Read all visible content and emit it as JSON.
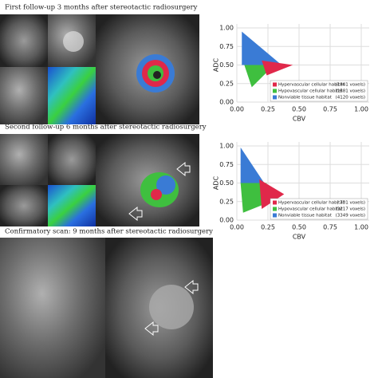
{
  "panels": [
    {
      "title": "First follow-up 3 months after stereotactic radiosurgery"
    },
    {
      "title": "Second follow-up 6 months after stereotactic radiosurgery"
    },
    {
      "title": "Confirmatory scan: 9 months after stereotactic radiosurgery"
    }
  ],
  "plots": [
    {
      "xlabel": "CBV",
      "ylabel": "ADC",
      "xlim": [
        0,
        1
      ],
      "ylim": [
        0,
        1
      ],
      "xticks": [
        {
          "value": 0,
          "label": "0.00"
        },
        {
          "value": 0.25,
          "label": "0.25"
        },
        {
          "value": 0.5,
          "label": "0.50"
        },
        {
          "value": 0.75,
          "label": "0.75"
        },
        {
          "value": 1,
          "label": "1.00"
        }
      ],
      "yticks": [
        {
          "value": 0,
          "label": "0.00"
        },
        {
          "value": 0.25,
          "label": "0.25"
        },
        {
          "value": 0.5,
          "label": "0.50"
        },
        {
          "value": 0.75,
          "label": "0.75"
        },
        {
          "value": 1,
          "label": "1.00"
        }
      ],
      "legend": [
        {
          "name": "Hypervascular cellular habitat",
          "count": "(1841 voxels)",
          "color": "#e0284a"
        },
        {
          "name": "Hypovascular cellular habitat",
          "count": "(1581 voxels)",
          "color": "#3fbf3f"
        },
        {
          "name": "Nonviable tissue habitat",
          "count": "(4120 voxels)",
          "color": "#3a7bd5"
        }
      ]
    },
    {
      "xlabel": "CBV",
      "ylabel": "ADC",
      "xlim": [
        0,
        1
      ],
      "ylim": [
        0,
        1
      ],
      "xticks": [
        {
          "value": 0,
          "label": "0.00"
        },
        {
          "value": 0.25,
          "label": "0.25"
        },
        {
          "value": 0.5,
          "label": "0.50"
        },
        {
          "value": 0.75,
          "label": "0.75"
        },
        {
          "value": 1,
          "label": "1.00"
        }
      ],
      "yticks": [
        {
          "value": 0,
          "label": "0.00"
        },
        {
          "value": 0.25,
          "label": "0.25"
        },
        {
          "value": 0.5,
          "label": "0.50"
        },
        {
          "value": 0.75,
          "label": "0.75"
        },
        {
          "value": 1,
          "label": "1.00"
        }
      ],
      "legend": [
        {
          "name": "Hypervascular cellular habitat",
          "count": "( 731 voxels)",
          "color": "#e0284a"
        },
        {
          "name": "Hypovascular cellular habitat",
          "count": "(3217 voxels)",
          "color": "#3fbf3f"
        },
        {
          "name": "Nonviable tissue habitat",
          "count": "(3349 voxels)",
          "color": "#3a7bd5"
        }
      ]
    }
  ]
}
